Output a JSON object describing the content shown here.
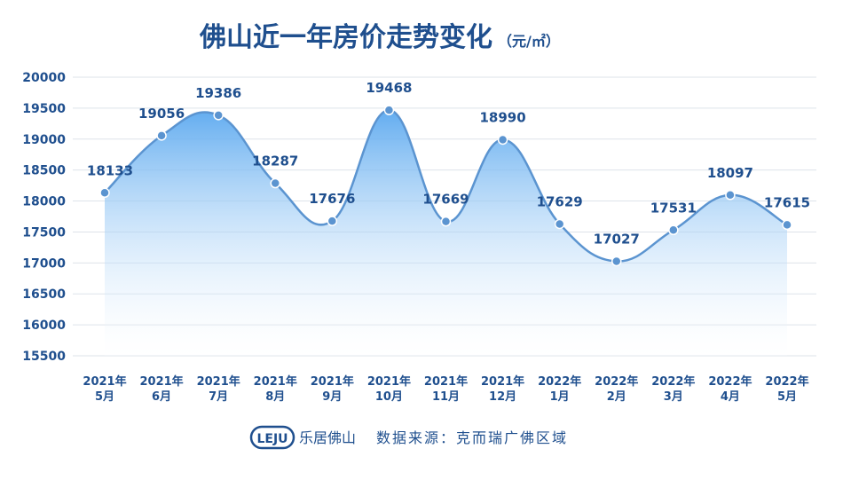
{
  "title": "佛山近一年房价走势变化",
  "unit": "（元/㎡）",
  "footer": {
    "brand_logo": "LEJU",
    "brand_name": "乐居佛山",
    "source": "数据来源：克而瑞广佛区域"
  },
  "colors": {
    "title": "#1f4f8e",
    "line": "#5b94d0",
    "point": "#5b94d0",
    "area_top": "#5aa8ef",
    "area_bottom": "#ffffff",
    "axis_text": "#1f4f8e",
    "grid": "#dde3ea"
  },
  "chart_data": {
    "type": "area",
    "categories": [
      [
        "2021年",
        "5月"
      ],
      [
        "2021年",
        "6月"
      ],
      [
        "2021年",
        "7月"
      ],
      [
        "2021年",
        "8月"
      ],
      [
        "2021年",
        "9月"
      ],
      [
        "2021年",
        "10月"
      ],
      [
        "2021年",
        "11月"
      ],
      [
        "2021年",
        "12月"
      ],
      [
        "2022年",
        "1月"
      ],
      [
        "2022年",
        "2月"
      ],
      [
        "2022年",
        "3月"
      ],
      [
        "2022年",
        "4月"
      ],
      [
        "2022年",
        "5月"
      ]
    ],
    "values": [
      18133,
      19056,
      19386,
      18287,
      17676,
      19468,
      17669,
      18990,
      17629,
      17027,
      17531,
      18097,
      17615
    ],
    "ylim": [
      15500,
      20000
    ],
    "yticks": [
      15500,
      16000,
      16500,
      17000,
      17500,
      18000,
      18500,
      19000,
      19500,
      20000
    ],
    "grid": true,
    "smooth": true
  }
}
